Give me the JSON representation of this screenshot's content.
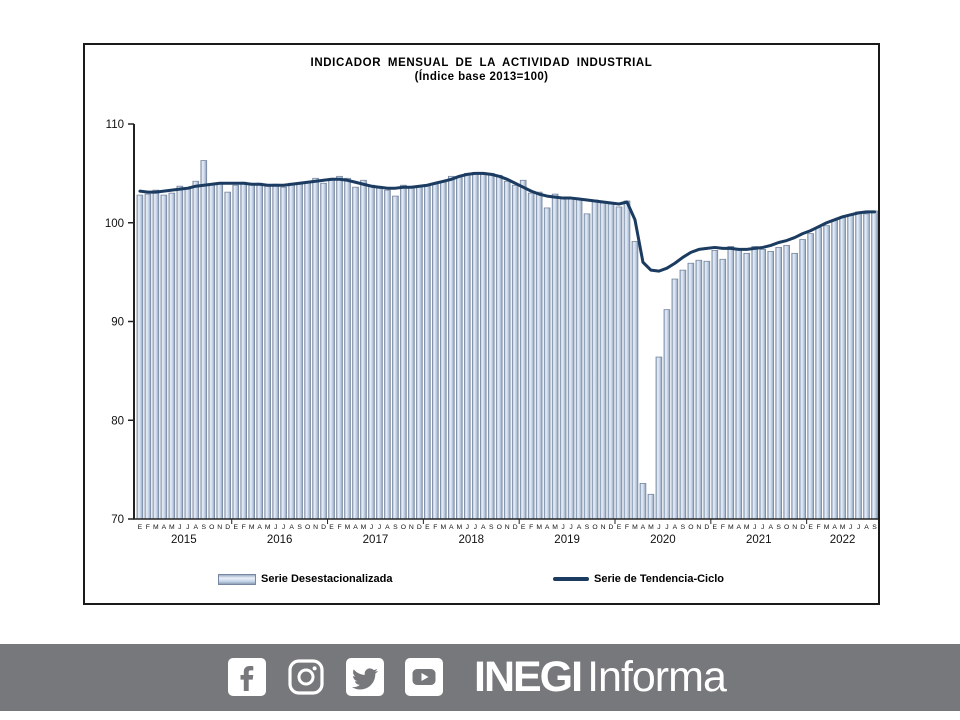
{
  "title": {
    "line1": "INDICADOR MENSUAL DE LA ACTIVIDAD INDUSTRIAL",
    "line2": "(Índice base 2013=100)"
  },
  "legend": {
    "bar_label": "Serie Desestacionalizada",
    "line_label": "Serie de Tendencia-Ciclo"
  },
  "footer": {
    "brand_bold": "INEGI",
    "brand_regular": "Informa",
    "bg": "#77787b",
    "social": [
      "facebook",
      "instagram",
      "twitter",
      "youtube"
    ]
  },
  "chart_data": {
    "type": "bar",
    "title": "INDICADOR MENSUAL DE LA ACTIVIDAD INDUSTRIAL",
    "subtitle": "(Índice base 2013=100)",
    "ylim": [
      70,
      110
    ],
    "yticks": [
      70,
      80,
      90,
      100,
      110
    ],
    "grid": false,
    "legend_position": "bottom",
    "month_letters": [
      "E",
      "F",
      "M",
      "A",
      "M",
      "J",
      "J",
      "A",
      "S",
      "O",
      "N",
      "D"
    ],
    "years": [
      {
        "label": "2015",
        "months": 12
      },
      {
        "label": "2016",
        "months": 12
      },
      {
        "label": "2017",
        "months": 12
      },
      {
        "label": "2018",
        "months": 12
      },
      {
        "label": "2019",
        "months": 12
      },
      {
        "label": "2020",
        "months": 12
      },
      {
        "label": "2021",
        "months": 12
      },
      {
        "label": "2022",
        "months": 9
      }
    ],
    "colors": {
      "bar_fill": "#c6d5ea",
      "bar_edge": "#76879f",
      "line": "#1b3b61"
    },
    "series": [
      {
        "name": "Serie Desestacionalizada",
        "type": "bar",
        "values": [
          102.8,
          102.9,
          103.3,
          102.8,
          103.0,
          103.7,
          103.4,
          104.2,
          106.3,
          103.9,
          104.0,
          103.1,
          103.8,
          104.1,
          103.9,
          104.0,
          103.7,
          103.9,
          103.6,
          104.0,
          103.9,
          104.1,
          104.5,
          104.0,
          104.3,
          104.7,
          104.5,
          103.6,
          104.3,
          103.8,
          103.5,
          103.3,
          102.7,
          103.8,
          103.6,
          103.7,
          103.7,
          104.0,
          104.1,
          104.7,
          104.6,
          105.0,
          105.1,
          104.9,
          105.0,
          104.8,
          104.2,
          103.8,
          104.3,
          103.0,
          103.1,
          101.5,
          102.9,
          102.6,
          102.5,
          102.4,
          100.9,
          102.3,
          102.0,
          101.9,
          101.6,
          102.2,
          98.1,
          73.6,
          72.5,
          86.4,
          91.2,
          94.3,
          95.2,
          95.9,
          96.2,
          96.1,
          97.2,
          96.3,
          97.6,
          97.4,
          96.9,
          97.6,
          97.3,
          97.1,
          97.5,
          97.7,
          96.9,
          98.3,
          98.9,
          99.5,
          99.7,
          100.3,
          100.5,
          100.8,
          101.1,
          100.9,
          101.2
        ]
      },
      {
        "name": "Serie de Tendencia-Ciclo",
        "type": "line",
        "values": [
          103.2,
          103.1,
          103.1,
          103.2,
          103.3,
          103.4,
          103.5,
          103.7,
          103.8,
          103.9,
          104.0,
          104.0,
          104.0,
          104.0,
          103.9,
          103.9,
          103.8,
          103.8,
          103.8,
          103.9,
          104.0,
          104.1,
          104.2,
          104.3,
          104.4,
          104.4,
          104.3,
          104.1,
          103.9,
          103.7,
          103.6,
          103.5,
          103.5,
          103.6,
          103.6,
          103.7,
          103.8,
          104.0,
          104.2,
          104.4,
          104.7,
          104.9,
          105.0,
          105.0,
          104.9,
          104.7,
          104.4,
          104.0,
          103.6,
          103.2,
          102.9,
          102.7,
          102.6,
          102.5,
          102.5,
          102.4,
          102.3,
          102.2,
          102.1,
          102.0,
          101.9,
          102.1,
          100.3,
          96.0,
          95.2,
          95.1,
          95.4,
          95.9,
          96.5,
          97.0,
          97.3,
          97.4,
          97.5,
          97.4,
          97.4,
          97.3,
          97.3,
          97.4,
          97.5,
          97.7,
          98.0,
          98.2,
          98.5,
          98.9,
          99.2,
          99.6,
          100.0,
          100.3,
          100.6,
          100.8,
          101.0,
          101.1,
          101.1
        ]
      }
    ]
  }
}
